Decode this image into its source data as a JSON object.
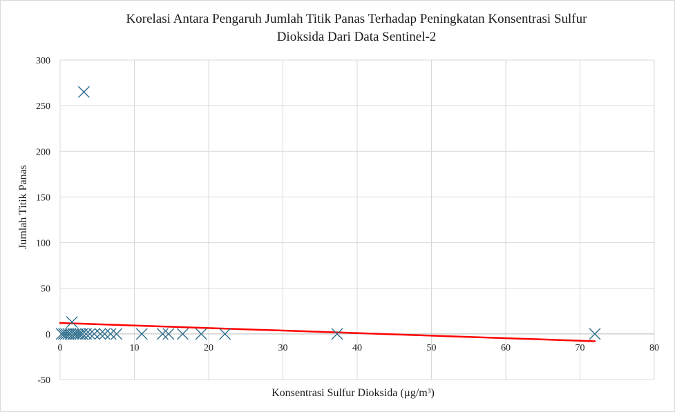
{
  "chart_data": {
    "type": "scatter",
    "title_lines": [
      "Korelasi Antara Pengaruh Jumlah Titik Panas Terhadap Peningkatan Konsentrasi Sulfur",
      "Dioksida Dari Data Sentinel-2"
    ],
    "xlabel": "Konsentrasi Sulfur Dioksida (µg/m³)",
    "ylabel": "Jumlah Titik Panas",
    "xlim": [
      0,
      80
    ],
    "ylim": [
      -50,
      300
    ],
    "xticks": [
      0,
      10,
      20,
      30,
      40,
      50,
      60,
      70,
      80
    ],
    "yticks": [
      -50,
      0,
      50,
      100,
      150,
      200,
      250,
      300
    ],
    "grid": true,
    "legend": "none",
    "marker": "x",
    "series_color": "#2e6e8e",
    "trendline": {
      "type": "linear",
      "color": "#ff0000",
      "x": [
        0,
        72
      ],
      "y": [
        12,
        -8
      ]
    },
    "points": [
      {
        "x": 0.2,
        "y": 0
      },
      {
        "x": 0.5,
        "y": 0
      },
      {
        "x": 0.8,
        "y": 0
      },
      {
        "x": 1.1,
        "y": 0
      },
      {
        "x": 1.4,
        "y": 0
      },
      {
        "x": 1.6,
        "y": 13
      },
      {
        "x": 1.8,
        "y": 0
      },
      {
        "x": 2.1,
        "y": 0
      },
      {
        "x": 2.4,
        "y": 0
      },
      {
        "x": 2.7,
        "y": 0
      },
      {
        "x": 3.0,
        "y": 0
      },
      {
        "x": 3.2,
        "y": 265
      },
      {
        "x": 3.5,
        "y": 0
      },
      {
        "x": 4.0,
        "y": 0
      },
      {
        "x": 4.6,
        "y": 0
      },
      {
        "x": 5.4,
        "y": 0
      },
      {
        "x": 6.0,
        "y": 0
      },
      {
        "x": 6.8,
        "y": 0
      },
      {
        "x": 7.6,
        "y": 0
      },
      {
        "x": 11.0,
        "y": 0
      },
      {
        "x": 13.8,
        "y": 0
      },
      {
        "x": 14.6,
        "y": 0
      },
      {
        "x": 16.5,
        "y": 0
      },
      {
        "x": 19.0,
        "y": 0
      },
      {
        "x": 22.2,
        "y": 0
      },
      {
        "x": 37.3,
        "y": 0
      },
      {
        "x": 72.0,
        "y": 0
      }
    ]
  }
}
